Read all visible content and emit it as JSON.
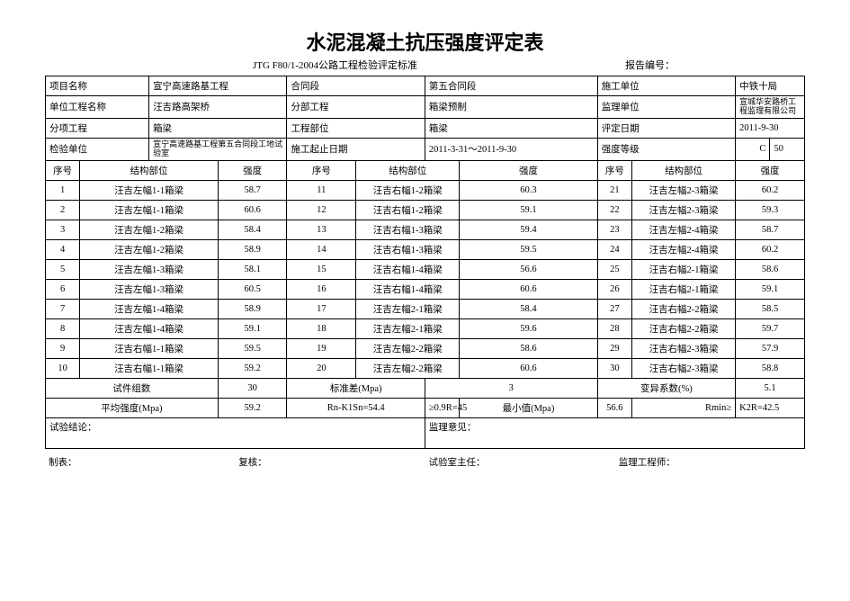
{
  "title": "水泥混凝土抗压强度评定表",
  "subtitle": "JTG F80/1-2004公路工程检验评定标准",
  "reportNoLabel": "报告编号：",
  "header": {
    "r1": {
      "l1": "项目名称",
      "v1": "宣宁高速路基工程",
      "l2": "合同段",
      "v2": "",
      "l3": "第五合同段",
      "v3": "",
      "l4": "施工单位",
      "v4": "中铁十局"
    },
    "r2": {
      "l1": "单位工程名称",
      "v1": "汪吉路高架桥",
      "l2": "分部工程",
      "v2": "",
      "l3": "箱梁预制",
      "v3": "",
      "l4": "监理单位",
      "v4": "宣城华安路桥工程监理有限公司"
    },
    "r3": {
      "l1": "分项工程",
      "v1": "箱梁",
      "l2": "工程部位",
      "v2": "",
      "l3": "箱梁",
      "v3": "",
      "l4": "评定日期",
      "v4": "2011-9-30"
    },
    "r4": {
      "l1": "检验单位",
      "v1": "宣宁高速路基工程第五合同段工地试验室",
      "l2": "施工起止日期",
      "v2": "",
      "l3": "2011-3-31～2011-9-30",
      "v3": "",
      "l4": "强度等级",
      "v4c": "C",
      "v4n": "50"
    }
  },
  "dh": {
    "seq": "序号",
    "part": "结构部位",
    "str": "强度"
  },
  "rows": [
    {
      "a": "1",
      "ap": "汪吉左幅1-1箱梁",
      "as": "58.7",
      "b": "11",
      "bp": "汪吉右幅1-2箱梁",
      "bs": "60.3",
      "c": "21",
      "cp": "汪吉左幅2-3箱梁",
      "cs": "60.2"
    },
    {
      "a": "2",
      "ap": "汪吉左幅1-1箱梁",
      "as": "60.6",
      "b": "12",
      "bp": "汪吉右幅1-2箱梁",
      "bs": "59.1",
      "c": "22",
      "cp": "汪吉左幅2-3箱梁",
      "cs": "59.3"
    },
    {
      "a": "3",
      "ap": "汪吉左幅1-2箱梁",
      "as": "58.4",
      "b": "13",
      "bp": "汪吉右幅1-3箱梁",
      "bs": "59.4",
      "c": "23",
      "cp": "汪吉左幅2-4箱梁",
      "cs": "58.7"
    },
    {
      "a": "4",
      "ap": "汪吉左幅1-2箱梁",
      "as": "58.9",
      "b": "14",
      "bp": "汪吉右幅1-3箱梁",
      "bs": "59.5",
      "c": "24",
      "cp": "汪吉左幅2-4箱梁",
      "cs": "60.2"
    },
    {
      "a": "5",
      "ap": "汪吉左幅1-3箱梁",
      "as": "58.1",
      "b": "15",
      "bp": "汪吉右幅1-4箱梁",
      "bs": "56.6",
      "c": "25",
      "cp": "汪吉右幅2-1箱梁",
      "cs": "58.6"
    },
    {
      "a": "6",
      "ap": "汪吉左幅1-3箱梁",
      "as": "60.5",
      "b": "16",
      "bp": "汪吉右幅1-4箱梁",
      "bs": "60.6",
      "c": "26",
      "cp": "汪吉右幅2-1箱梁",
      "cs": "59.1"
    },
    {
      "a": "7",
      "ap": "汪吉左幅1-4箱梁",
      "as": "58.9",
      "b": "17",
      "bp": "汪吉左幅2-1箱梁",
      "bs": "58.4",
      "c": "27",
      "cp": "汪吉右幅2-2箱梁",
      "cs": "58.5"
    },
    {
      "a": "8",
      "ap": "汪吉左幅1-4箱梁",
      "as": "59.1",
      "b": "18",
      "bp": "汪吉左幅2-1箱梁",
      "bs": "59.6",
      "c": "28",
      "cp": "汪吉右幅2-2箱梁",
      "cs": "59.7"
    },
    {
      "a": "9",
      "ap": "汪吉右幅1-1箱梁",
      "as": "59.5",
      "b": "19",
      "bp": "汪吉左幅2-2箱梁",
      "bs": "58.6",
      "c": "29",
      "cp": "汪吉右幅2-3箱梁",
      "cs": "57.9"
    },
    {
      "a": "10",
      "ap": "汪吉右幅1-1箱梁",
      "as": "59.2",
      "b": "20",
      "bp": "汪吉左幅2-2箱梁",
      "bs": "60.6",
      "c": "30",
      "cp": "汪吉右幅2-3箱梁",
      "cs": "58.8"
    }
  ],
  "summary1": {
    "l1": "试件组数",
    "v1": "30",
    "l2": "标准差(Mpa)",
    "v2": "3",
    "l3": "变异系数(%)",
    "v3": "5.1"
  },
  "summary2": {
    "l1": "平均强度(Mpa)",
    "v1": "59.2",
    "l2": "Rn-K1Sn=54.4",
    "l3": "≥0.9R=45",
    "l4": "最小值(Mpa)",
    "v4": "56.6",
    "l5": "Rmin≥",
    "v5": "K2R=42.5"
  },
  "concl": {
    "l1": "试验结论：",
    "l2": "监理意见："
  },
  "foot": {
    "a": "制表：",
    "b": "复核：",
    "c": "试验室主任：",
    "d": "监理工程师："
  }
}
